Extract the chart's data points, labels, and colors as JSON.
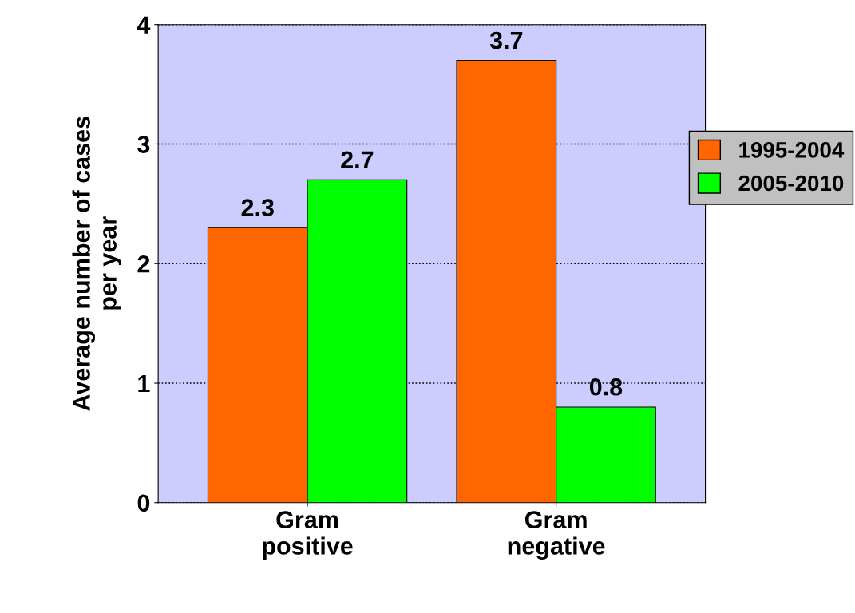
{
  "chart_data": {
    "type": "bar",
    "ylabel": "Average number of cases\nper year",
    "categories": [
      "Gram\npositive",
      "Gram\nnegative"
    ],
    "series": [
      {
        "name": "1995-2004",
        "color": "#ff6600",
        "values": [
          2.3,
          3.7
        ]
      },
      {
        "name": "2005-2010",
        "color": "#00ff00",
        "values": [
          2.7,
          0.8
        ]
      }
    ],
    "ylim": [
      0,
      4
    ],
    "yticks": [
      0,
      1,
      2,
      3,
      4
    ],
    "grid": "y",
    "legend": "top right",
    "data_labels": true
  }
}
